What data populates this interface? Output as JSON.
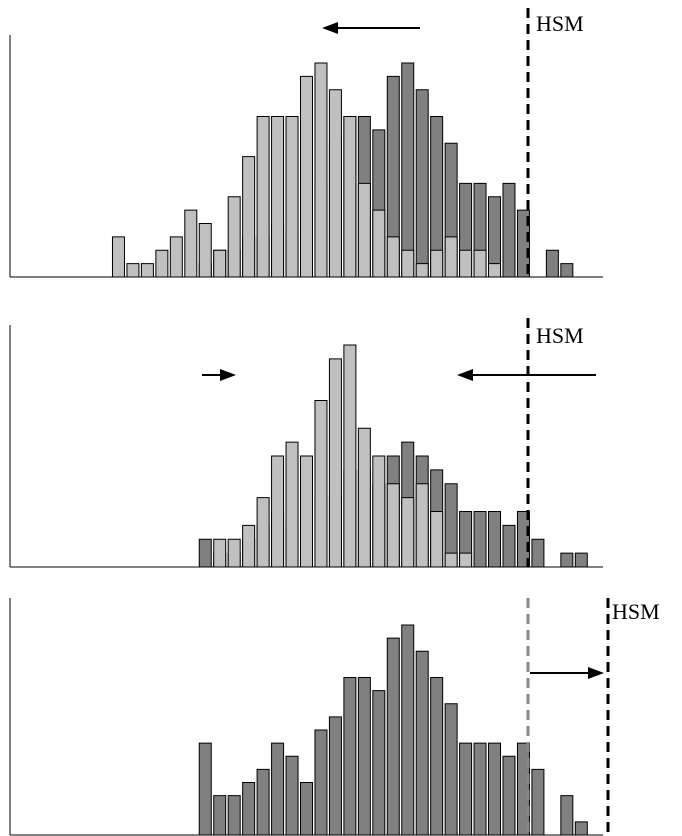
{
  "chart_data": [
    {
      "type": "bar",
      "annotation": "HSM",
      "xlim": [
        -13.5,
        27.5
      ],
      "ylim": [
        0,
        16
      ],
      "series": [
        {
          "color": "#808080",
          "x": [
            0,
            1,
            2,
            3,
            4,
            5,
            6,
            7,
            8,
            9,
            10,
            11,
            12,
            13,
            14,
            15,
            16,
            17,
            18,
            19,
            20,
            21,
            22,
            23,
            24,
            25,
            26
          ],
          "values": [
            1,
            2,
            2,
            3,
            3,
            4,
            3,
            5,
            7,
            10,
            12,
            12,
            11,
            15,
            16,
            14,
            12,
            10,
            7,
            7,
            6,
            7,
            5,
            0,
            2,
            1,
            0
          ]
        },
        {
          "color": "#c0c0c0",
          "x": [
            -6,
            -5,
            -4,
            -3,
            -2,
            -1,
            0,
            1,
            2,
            3,
            4,
            5,
            6,
            7,
            8,
            9,
            10,
            11,
            12,
            13,
            14,
            15,
            16,
            17,
            18,
            19,
            20
          ],
          "values": [
            3,
            1,
            1,
            2,
            3,
            5,
            4,
            2,
            6,
            9,
            12,
            12,
            12,
            15,
            16,
            14,
            12,
            7,
            5,
            3,
            2,
            1,
            2,
            3,
            2,
            2,
            1
          ]
        }
      ]
    },
    {
      "type": "bar",
      "annotation": "HSM",
      "xlim": [
        -13.5,
        27.5
      ],
      "ylim": [
        0,
        16
      ],
      "series": [
        {
          "color": "#808080",
          "x": [
            0,
            1,
            2,
            3,
            4,
            5,
            6,
            7,
            8,
            9,
            10,
            11,
            12,
            13,
            14,
            15,
            16,
            17,
            18,
            19,
            20,
            21,
            22,
            23,
            24,
            25,
            26
          ],
          "values": [
            2,
            1,
            1,
            2,
            3,
            4,
            3,
            2,
            5,
            5,
            7,
            7,
            6,
            8,
            9,
            8,
            7,
            6,
            4,
            4,
            4,
            3,
            4,
            2,
            0,
            1,
            1
          ]
        },
        {
          "color": "#c0c0c0",
          "x": [
            1,
            2,
            3,
            4,
            5,
            6,
            7,
            8,
            9,
            10,
            11,
            12,
            13,
            14,
            15,
            16,
            17,
            18
          ],
          "values": [
            2,
            2,
            3,
            5,
            8,
            9,
            8,
            12,
            15,
            16,
            10,
            8,
            6,
            5,
            6,
            4,
            1,
            1
          ]
        }
      ]
    },
    {
      "type": "bar",
      "annotation": "HSM",
      "xlim": [
        -13.5,
        27.5
      ],
      "ylim": [
        0,
        16
      ],
      "series": [
        {
          "color": "#808080",
          "x": [
            0,
            1,
            2,
            3,
            4,
            5,
            6,
            7,
            8,
            9,
            10,
            11,
            12,
            13,
            14,
            15,
            16,
            17,
            18,
            19,
            20,
            21,
            22,
            23,
            24,
            25,
            26
          ],
          "values": [
            7,
            3,
            3,
            4,
            5,
            7,
            6,
            4,
            8,
            9,
            12,
            12,
            11,
            15,
            16,
            14,
            12,
            10,
            7,
            7,
            7,
            6,
            7,
            5,
            0,
            3,
            1
          ]
        }
      ]
    }
  ]
}
